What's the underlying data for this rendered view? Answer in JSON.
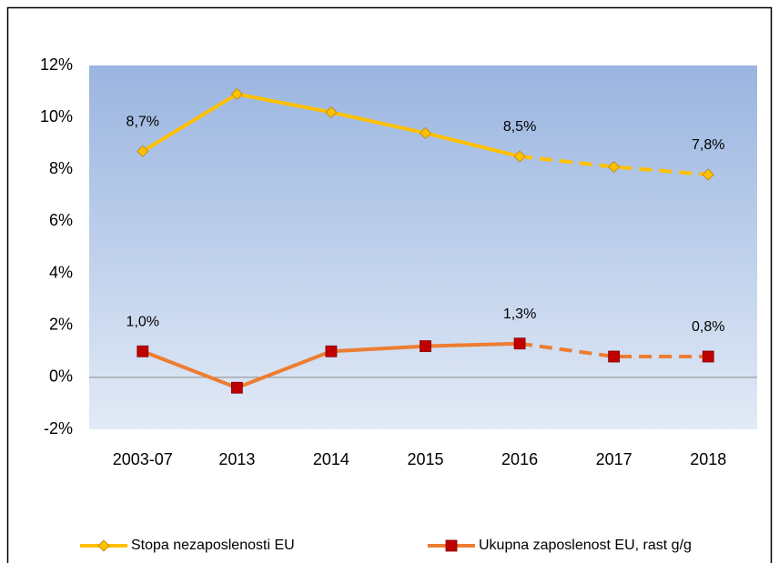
{
  "chart_data": {
    "type": "line",
    "categories": [
      "2003-07",
      "2013",
      "2014",
      "2015",
      "2016",
      "2017",
      "2018"
    ],
    "series": [
      {
        "name": "Stopa nezaposlenosti EU",
        "color": "#ffc000",
        "marker": "diamond",
        "marker_color": "#ffc000",
        "values": [
          8.7,
          10.9,
          10.2,
          9.4,
          8.5,
          8.1,
          7.8
        ],
        "value_labels": [
          "8,7%",
          null,
          null,
          null,
          "8,5%",
          null,
          "7,8%"
        ],
        "dashed_from": "2016"
      },
      {
        "name": "Ukupna zaposlenost EU, rast g/g",
        "color": "#ed7d31",
        "marker": "square",
        "marker_color": "#c00000",
        "values": [
          1.0,
          -0.4,
          1.0,
          1.2,
          1.3,
          0.8,
          0.8
        ],
        "value_labels": [
          "1,0%",
          null,
          null,
          null,
          "1,3%",
          null,
          "0,8%"
        ],
        "dashed_from": "2016"
      }
    ],
    "ylim": [
      -2,
      12
    ],
    "yticks": [
      {
        "value": -2,
        "label": "-2%"
      },
      {
        "value": 0,
        "label": "0%"
      },
      {
        "value": 2,
        "label": "2%"
      },
      {
        "value": 4,
        "label": "4%"
      },
      {
        "value": 6,
        "label": "6%"
      },
      {
        "value": 8,
        "label": "8%"
      },
      {
        "value": 10,
        "label": "10%"
      },
      {
        "value": 12,
        "label": "12%"
      }
    ],
    "zero_line": true,
    "legend": "bottom"
  }
}
